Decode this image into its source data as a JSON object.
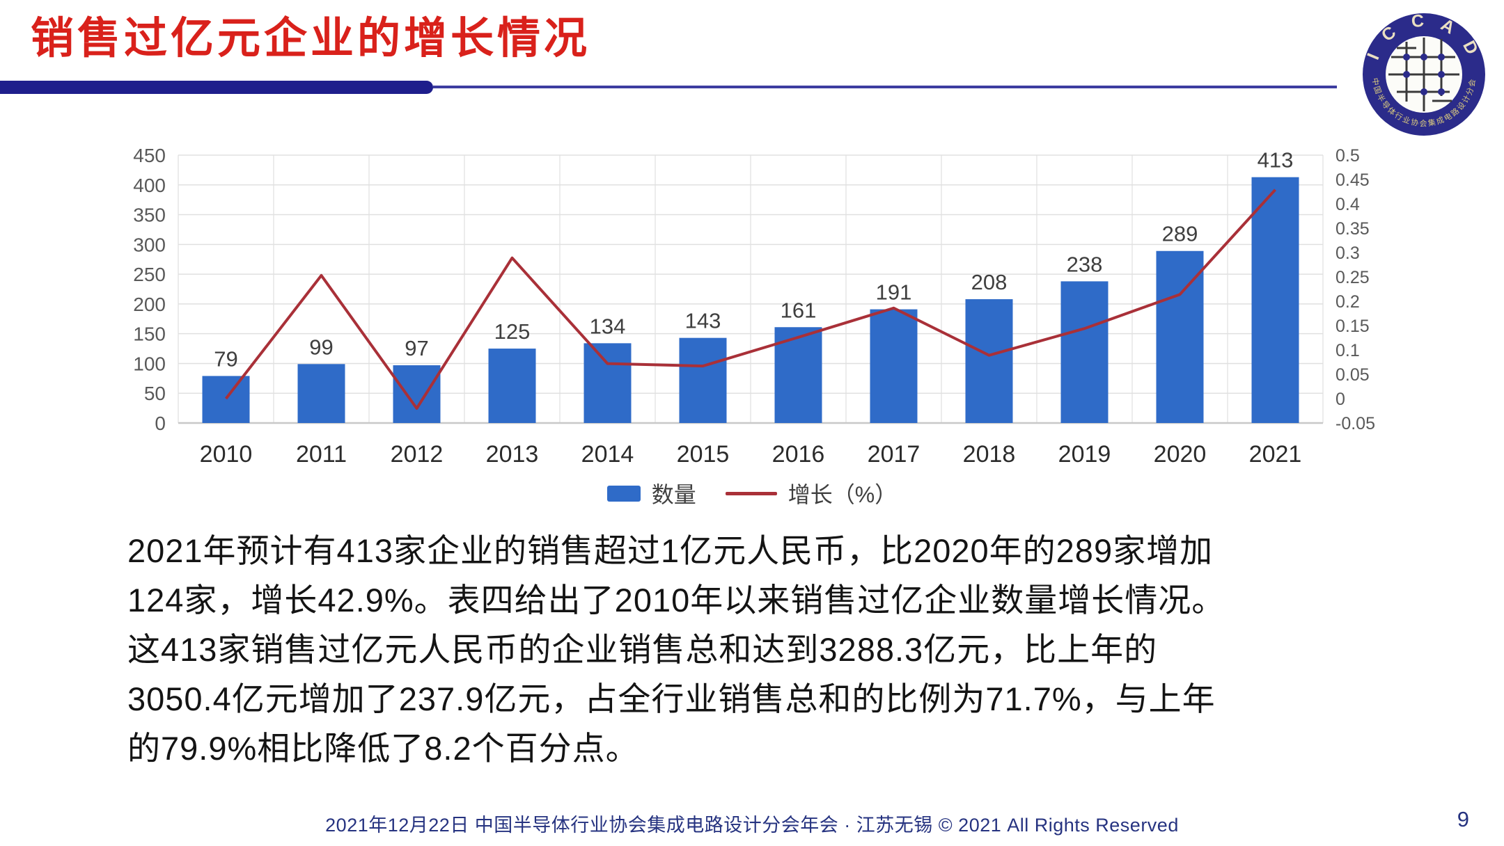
{
  "slide": {
    "title": "销售过亿元企业的增长情况",
    "page_number": "9",
    "footer": "2021年12月22日 中国半导体行业协会集成电路设计分会年会 · 江苏无锡 © 2021 All Rights Reserved",
    "logo": {
      "top_text": "I C C A D",
      "bottom_text": "中国半导体行业协会集成电路设计分会"
    }
  },
  "colors": {
    "title_red": "#D9211B",
    "bar_blue": "#2F6BC8",
    "line_red": "#A93038",
    "navy_bar": "#1E1E8C",
    "grid": "#E0E0E0",
    "axis": "#C8C8C8",
    "tick_text": "#595959",
    "label_text": "#3F3F3F",
    "footer_navy": "#263380"
  },
  "chart_data": {
    "type": "bar",
    "subtype": "bar+line combo",
    "categories": [
      "2010",
      "2011",
      "2012",
      "2013",
      "2014",
      "2015",
      "2016",
      "2017",
      "2018",
      "2019",
      "2020",
      "2021"
    ],
    "series": [
      {
        "name": "数量",
        "type": "bar",
        "axis": "left",
        "values": [
          79,
          99,
          97,
          125,
          134,
          143,
          161,
          191,
          208,
          238,
          289,
          413
        ]
      },
      {
        "name": "增长（%）",
        "type": "line",
        "axis": "right",
        "values": [
          0.0,
          0.253,
          -0.02,
          0.289,
          0.072,
          0.067,
          0.126,
          0.186,
          0.089,
          0.144,
          0.214,
          0.429
        ]
      }
    ],
    "left_axis": {
      "min": 0,
      "max": 450,
      "step": 50,
      "ticks": [
        0,
        50,
        100,
        150,
        200,
        250,
        300,
        350,
        400,
        450
      ]
    },
    "right_axis": {
      "min": -0.05,
      "max": 0.5,
      "step": 0.05,
      "ticks": [
        "-0.05",
        "0",
        "0.05",
        "0.1",
        "0.15",
        "0.2",
        "0.25",
        "0.3",
        "0.35",
        "0.4",
        "0.45",
        "0.5"
      ]
    },
    "legend": [
      "数量",
      "增长（%）"
    ],
    "legend_position": "bottom-center",
    "grid": true,
    "data_labels": true,
    "title": "",
    "xlabel": "",
    "ylabel": ""
  },
  "body": {
    "lines": [
      "2021年预计有413家企业的销售超过1亿元人民币，比2020年的289家增加",
      "124家，增长42.9%。表四给出了2010年以来销售过亿企业数量增长情况。",
      "这413家销售过亿元人民币的企业销售总和达到3288.3亿元，比上年的",
      "3050.4亿元增加了237.9亿元，占全行业销售总和的比例为71.7%，与上年",
      "的79.9%相比降低了8.2个百分点。"
    ]
  }
}
